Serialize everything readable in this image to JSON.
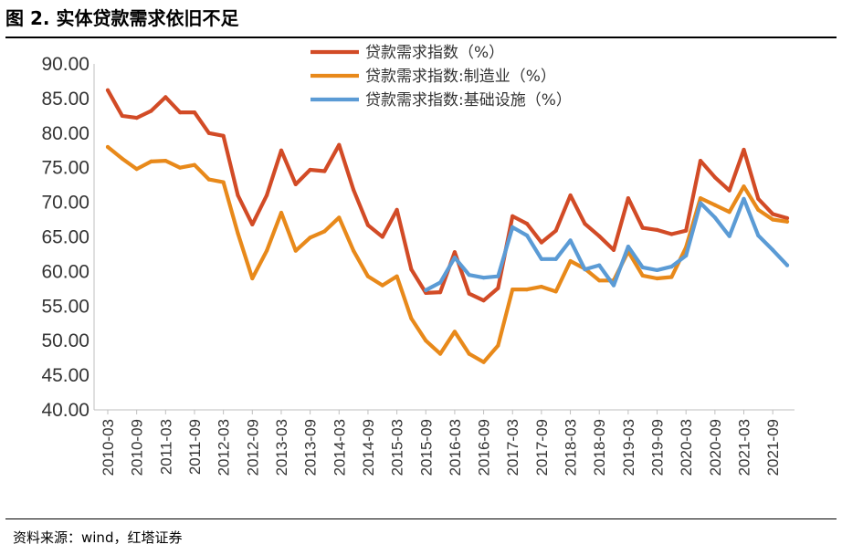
{
  "header": {
    "title": "图 2. 实体贷款需求依旧不足"
  },
  "footer": {
    "source": "资料来源：wind，红塔证券"
  },
  "colors": {
    "total": "#D24B26",
    "manufacturing": "#E8891A",
    "infrastructure": "#5B9BD5"
  },
  "chart_data": {
    "type": "line",
    "title": "图 2. 实体贷款需求依旧不足",
    "xlabel": "",
    "ylabel": "",
    "ylim": [
      40,
      90
    ],
    "yticks": [
      "40.00",
      "45.00",
      "50.00",
      "55.00",
      "60.00",
      "65.00",
      "70.00",
      "75.00",
      "80.00",
      "85.00",
      "90.00"
    ],
    "legend_position": "top-center",
    "grid": false,
    "x_tick_labels": [
      "2010-03",
      "2010-09",
      "2011-03",
      "2011-09",
      "2012-03",
      "2012-09",
      "2013-03",
      "2013-09",
      "2014-03",
      "2014-09",
      "2015-03",
      "2015-09",
      "2016-03",
      "2016-09",
      "2017-03",
      "2017-09",
      "2018-03",
      "2018-09",
      "2019-03",
      "2019-09",
      "2020-03",
      "2020-09",
      "2021-03",
      "2021-09"
    ],
    "categories": [
      "2010-03",
      "2010-06",
      "2010-09",
      "2010-12",
      "2011-03",
      "2011-06",
      "2011-09",
      "2011-12",
      "2012-03",
      "2012-06",
      "2012-09",
      "2012-12",
      "2013-03",
      "2013-06",
      "2013-09",
      "2013-12",
      "2014-03",
      "2014-06",
      "2014-09",
      "2014-12",
      "2015-03",
      "2015-06",
      "2015-09",
      "2015-12",
      "2016-03",
      "2016-06",
      "2016-09",
      "2016-12",
      "2017-03",
      "2017-06",
      "2017-09",
      "2017-12",
      "2018-03",
      "2018-06",
      "2018-09",
      "2018-12",
      "2019-03",
      "2019-06",
      "2019-09",
      "2019-12",
      "2020-03",
      "2020-06",
      "2020-09",
      "2020-12",
      "2021-03",
      "2021-06",
      "2021-09",
      "2021-12"
    ],
    "series": [
      {
        "name": "贷款需求指数（%）",
        "color_key": "total",
        "values": [
          86.2,
          82.5,
          82.2,
          83.2,
          85.2,
          83.0,
          83.0,
          80.0,
          79.6,
          71.0,
          66.8,
          71.0,
          77.5,
          72.6,
          74.7,
          74.5,
          78.3,
          71.8,
          66.7,
          65.0,
          68.9,
          60.3,
          56.9,
          57.0,
          62.8,
          56.8,
          55.8,
          57.6,
          68.0,
          66.9,
          64.2,
          65.9,
          71.0,
          66.9,
          65.1,
          63.1,
          70.6,
          66.3,
          66.0,
          65.4,
          65.9,
          76.0,
          73.6,
          71.7,
          77.6,
          70.5,
          68.3,
          67.7
        ]
      },
      {
        "name": "贷款需求指数:制造业（%）",
        "color_key": "manufacturing",
        "values": [
          78.0,
          76.3,
          74.8,
          75.9,
          76.0,
          75.0,
          75.4,
          73.3,
          72.9,
          65.5,
          59.0,
          63.0,
          68.5,
          63.0,
          64.9,
          65.8,
          67.8,
          63.0,
          59.3,
          58.0,
          59.3,
          53.2,
          50.0,
          48.1,
          51.3,
          48.1,
          46.9,
          49.3,
          57.4,
          57.4,
          57.8,
          57.1,
          61.5,
          60.4,
          58.7,
          58.7,
          62.9,
          59.4,
          59.0,
          59.2,
          63.5,
          70.6,
          69.6,
          68.6,
          72.3,
          68.9,
          67.5,
          67.2
        ]
      },
      {
        "name": "贷款需求指数:基础设施（%）",
        "color_key": "infrastructure",
        "values": [
          null,
          null,
          null,
          null,
          null,
          null,
          null,
          null,
          null,
          null,
          null,
          null,
          null,
          null,
          null,
          null,
          null,
          null,
          null,
          null,
          null,
          null,
          57.3,
          58.4,
          62.0,
          59.5,
          59.1,
          59.3,
          66.4,
          65.2,
          61.8,
          61.8,
          64.5,
          60.3,
          60.9,
          58.0,
          63.6,
          60.6,
          60.2,
          60.7,
          62.3,
          69.9,
          67.8,
          65.1,
          70.5,
          65.2,
          63.1,
          60.9
        ]
      }
    ]
  }
}
